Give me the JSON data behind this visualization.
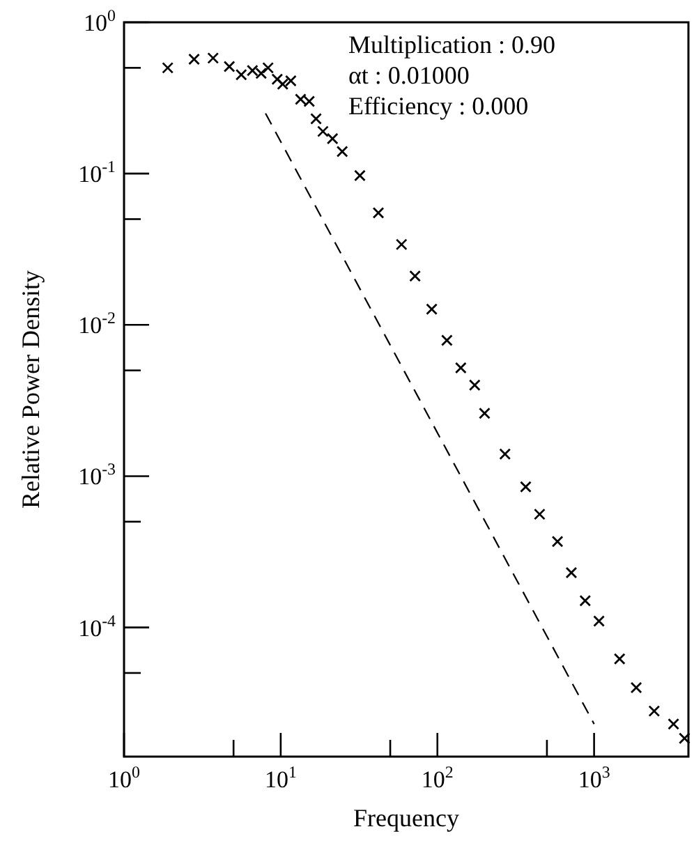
{
  "chart_data": {
    "type": "scatter",
    "xlabel": "Frequency",
    "ylabel": "Relative Power Density",
    "log": "xy",
    "grid": false,
    "xlim": [
      1,
      4000
    ],
    "ylim": [
      1.4e-05,
      1
    ],
    "xticks": [
      {
        "value": 1,
        "label": "10$^{0}$"
      },
      {
        "value": 5,
        "label": null
      },
      {
        "value": 10,
        "label": "10$^{1}$"
      },
      {
        "value": 50,
        "label": null
      },
      {
        "value": 100,
        "label": "10$^{2}$"
      },
      {
        "value": 500,
        "label": null
      },
      {
        "value": 1000,
        "label": "10$^{3}$"
      }
    ],
    "yticks": [
      {
        "value": 1,
        "label": "10$^{0}$"
      },
      {
        "value": 0.5,
        "label": null
      },
      {
        "value": 0.1,
        "label": "10$^{-1}$"
      },
      {
        "value": 0.05,
        "label": null
      },
      {
        "value": 0.01,
        "label": "10$^{-2}$"
      },
      {
        "value": 0.005,
        "label": null
      },
      {
        "value": 0.001,
        "label": "10$^{-3}$"
      },
      {
        "value": 0.0005,
        "label": null
      },
      {
        "value": 0.0001,
        "label": "10$^{-4}$"
      },
      {
        "value": 5e-05,
        "label": null
      }
    ],
    "series": [
      {
        "color": "#000000",
        "marker": "cross",
        "x": [
          1.9,
          2.8,
          3.7,
          4.7,
          5.6,
          6.6,
          7.5,
          8.3,
          9.5,
          10.3,
          11.6,
          13.4,
          15.2,
          16.8,
          18.6,
          21.4,
          24.7,
          32,
          42,
          59,
          72,
          92,
          115,
          141,
          173,
          200,
          270,
          366,
          449,
          584,
          716,
          877,
          1074,
          1455,
          1857,
          2418,
          3213,
          3776
        ],
        "values": [
          0.5,
          0.57,
          0.58,
          0.51,
          0.45,
          0.48,
          0.46,
          0.5,
          0.42,
          0.39,
          0.41,
          0.31,
          0.3,
          0.23,
          0.19,
          0.17,
          0.14,
          0.097,
          0.055,
          0.034,
          0.021,
          0.0127,
          0.0079,
          0.0052,
          0.004,
          0.0026,
          0.0014,
          0.00085,
          0.00056,
          0.00037,
          0.00023,
          0.00015,
          0.00011,
          6.2e-05,
          4e-05,
          2.8e-05,
          2.3e-05,
          1.85e-05
        ]
      },
      {
        "type": "line",
        "color": "#000000",
        "line_style": "dashed",
        "x": [
          8,
          1000
        ],
        "values": [
          0.25,
          2.3e-05
        ]
      }
    ],
    "annotations": [
      "Multiplication : 0.90",
      "αt : 0.01000",
      "Efficiency : 0.000"
    ]
  }
}
